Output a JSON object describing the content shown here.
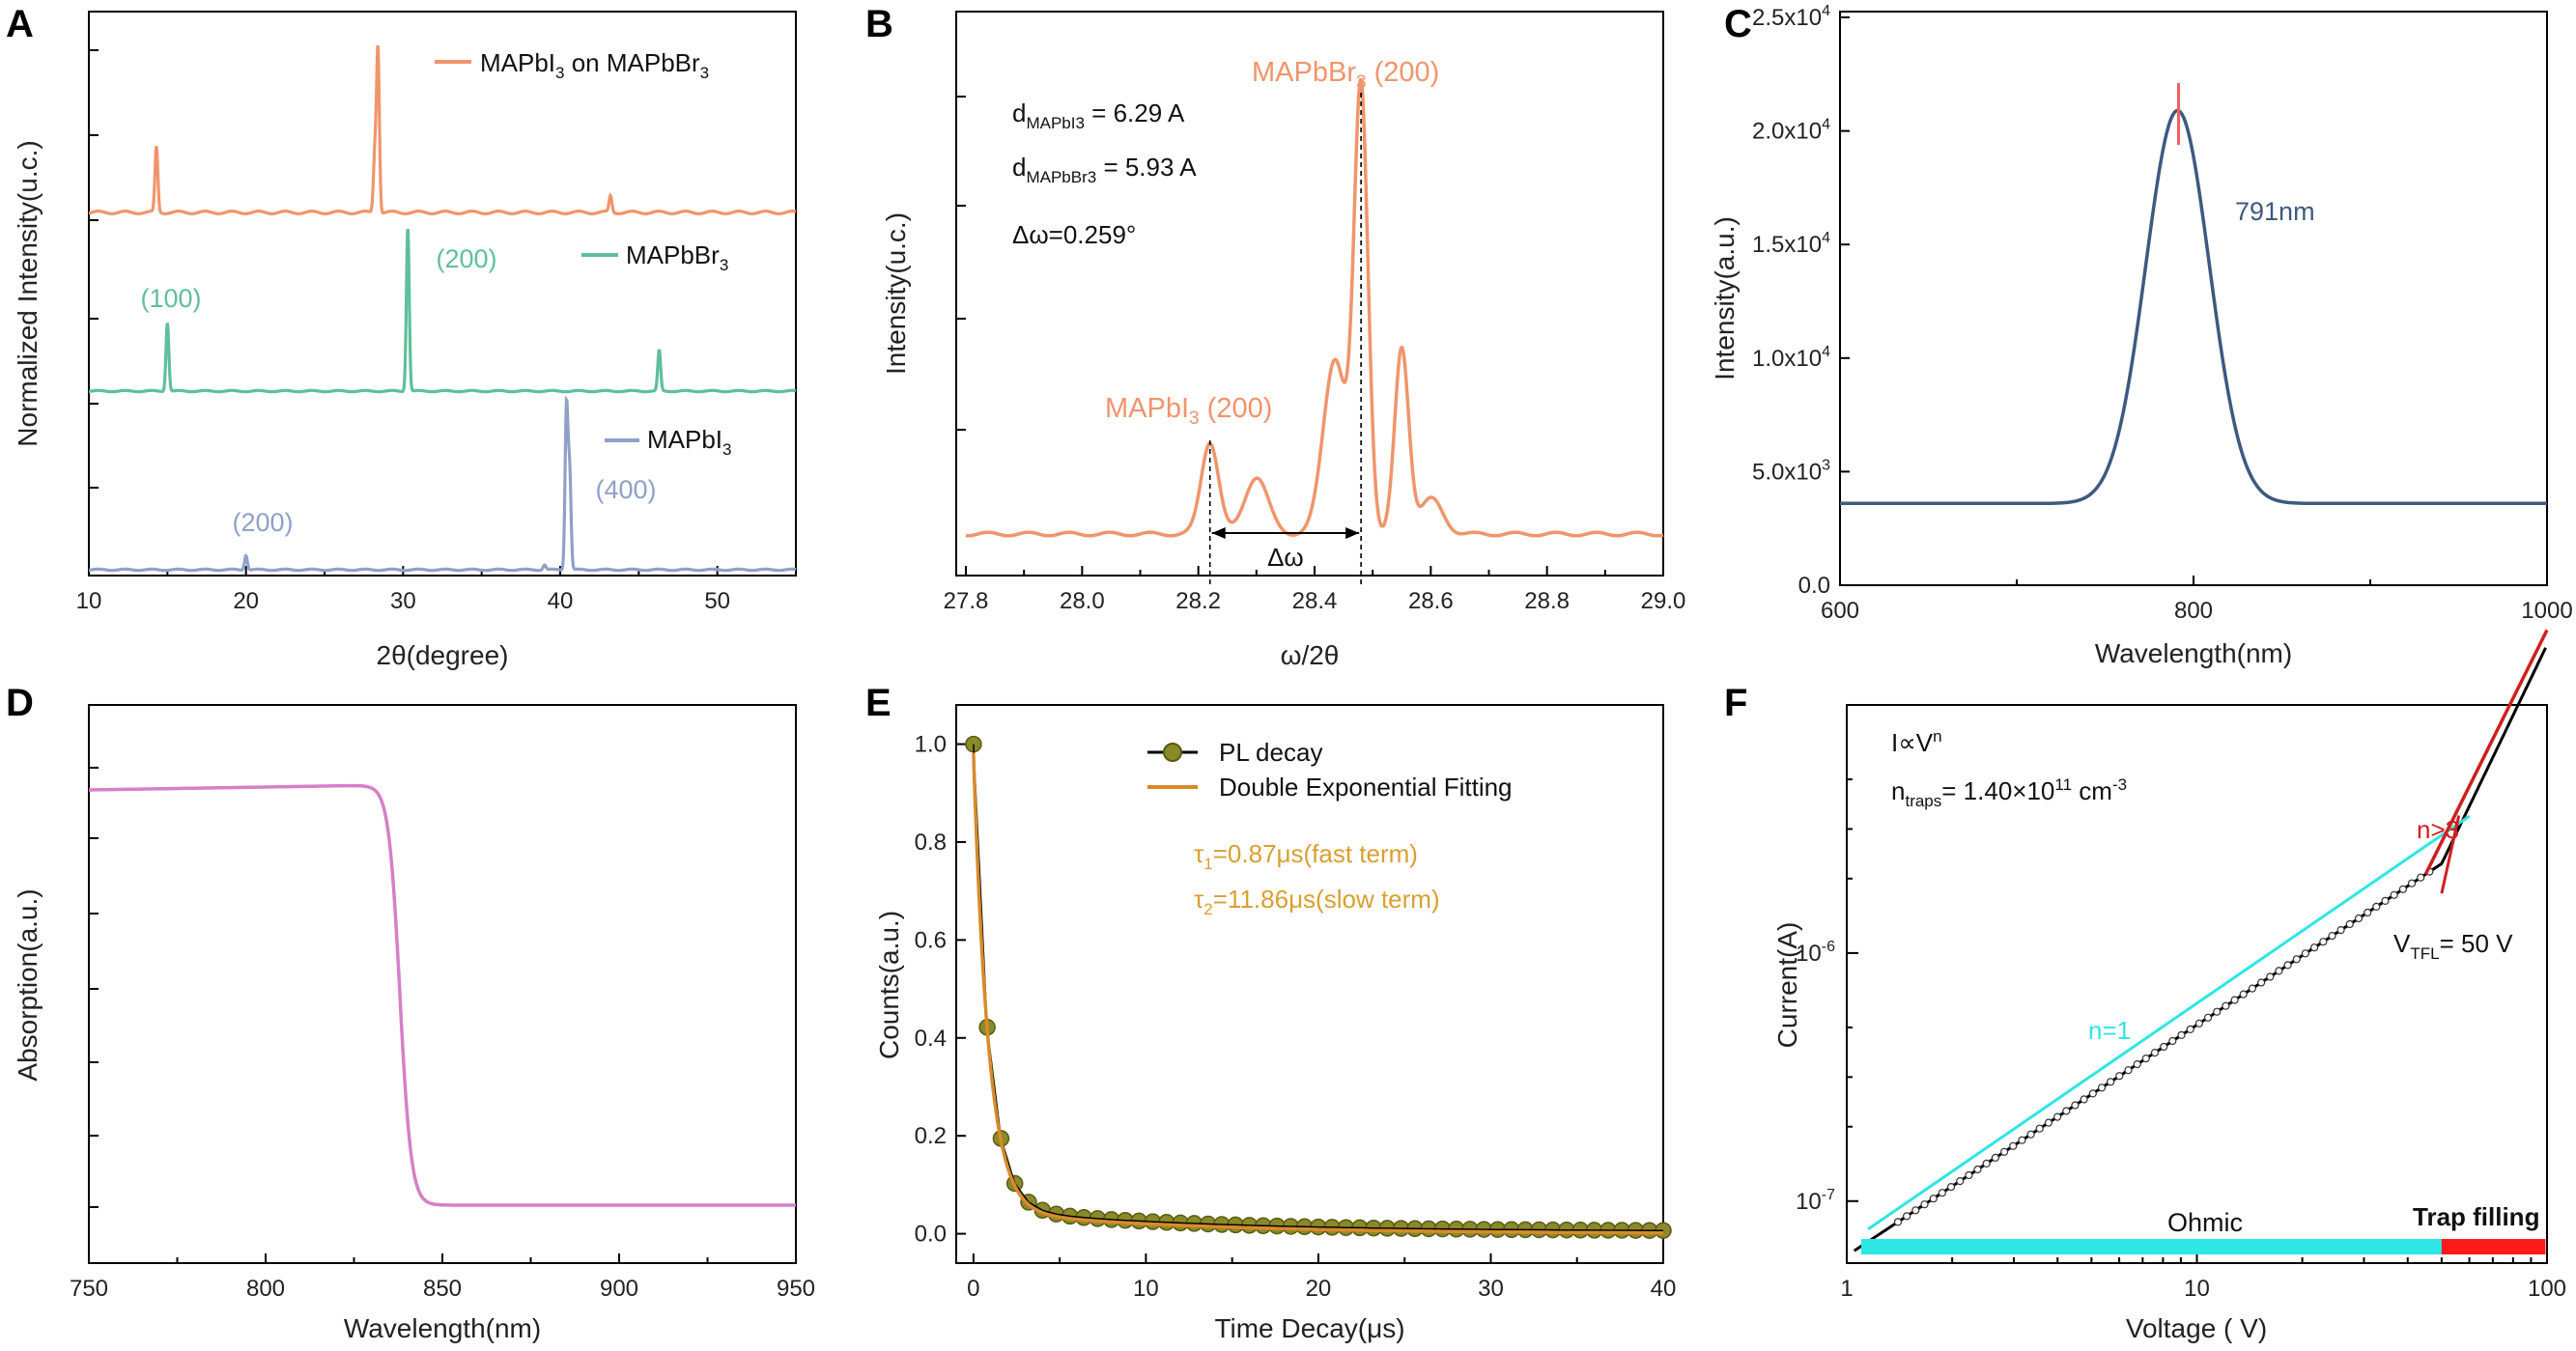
{
  "figure": {
    "panels": [
      "A",
      "B",
      "C",
      "D",
      "E",
      "F"
    ]
  },
  "chart_data": [
    {
      "panel": "A",
      "type": "line",
      "title": "",
      "xlabel": "2θ(degree)",
      "ylabel": "Normalized Intensity(u.c.)",
      "xlim": [
        10,
        55
      ],
      "xticks": [
        "10",
        "20",
        "30",
        "40",
        "50"
      ],
      "series": [
        {
          "name": "MAPbI3 on MAPbBr3",
          "color": "#f0956b",
          "offset": 2.0,
          "baseline": 0.04,
          "peaks": [
            [
              14.3,
              0.4
            ],
            [
              28.4,
              1.0
            ],
            [
              28.2,
              0.35
            ],
            [
              43.2,
              0.1
            ]
          ]
        },
        {
          "name": "MAPbBr3",
          "color": "#5fbf9c",
          "offset": 1.0,
          "baseline": 0.02,
          "peaks": [
            [
              15.0,
              0.42
            ],
            [
              30.3,
              1.0
            ],
            [
              46.3,
              0.25
            ]
          ]
        },
        {
          "name": "MAPbI3",
          "color": "#8fa1c8",
          "offset": 0.0,
          "baseline": 0.02,
          "peaks": [
            [
              20.0,
              0.09
            ],
            [
              39.0,
              0.03
            ],
            [
              40.4,
              1.0
            ],
            [
              40.6,
              0.6
            ]
          ]
        }
      ],
      "legend": [
        {
          "prefix": "MAPbI",
          "sub": "3",
          "suffix": " on MAPbBr",
          "sub2": "3"
        },
        {
          "prefix": "MAPbBr",
          "sub": "3",
          "suffix": "",
          "sub2": ""
        },
        {
          "prefix": "MAPbI",
          "sub": "3",
          "suffix": "",
          "sub2": ""
        }
      ],
      "annotations": [
        "(100)",
        "(200)",
        "(200)",
        "(400)"
      ]
    },
    {
      "panel": "B",
      "type": "line",
      "xlabel": "ω/2θ",
      "ylabel": "Intensity(u.c.)",
      "xlim": [
        27.8,
        29.0
      ],
      "xticks": [
        "27.8",
        "28.0",
        "28.2",
        "28.4",
        "28.6",
        "28.8",
        "29.0"
      ],
      "color": "#f0956b",
      "peaks": [
        [
          28.22,
          0.21,
          0.015
        ],
        [
          28.3,
          0.13,
          0.02
        ],
        [
          28.48,
          1.0,
          0.012
        ],
        [
          28.435,
          0.4,
          0.02
        ],
        [
          28.55,
          0.42,
          0.012
        ],
        [
          28.6,
          0.08,
          0.02
        ]
      ],
      "baseline": 0.0,
      "dashes": [
        28.22,
        28.48
      ],
      "text": {
        "d1_prefix": "d",
        "d1_sub": "MAPbI3",
        "d1_val": " = 6.29 A",
        "d2_prefix": "d",
        "d2_sub": "MAPbBr3",
        "d2_val": " = 5.93 A",
        "domega": "Δω=0.259°",
        "arrow_label": "Δω",
        "peak1_a": "MAPbI",
        "peak1_sub": "3",
        "peak1_b": " (200)",
        "peak2_a": "MAPbBr",
        "peak2_sub": "3",
        "peak2_b": " (200)"
      }
    },
    {
      "panel": "C",
      "type": "line",
      "xlabel": "Wavelength(nm)",
      "ylabel": "Intensity(a.u.)",
      "xlim": [
        600,
        1000
      ],
      "ylim": [
        0,
        25000
      ],
      "xticks": [
        "600",
        "800",
        "1000"
      ],
      "yticks": [
        {
          "v": 0,
          "m": "0.0",
          "e": ""
        },
        {
          "v": 5000,
          "m": "5.0x10",
          "e": "3"
        },
        {
          "v": 10000,
          "m": "1.0x10",
          "e": "4"
        },
        {
          "v": 15000,
          "m": "1.5x10",
          "e": "4"
        },
        {
          "v": 20000,
          "m": "2.0x10",
          "e": "4"
        },
        {
          "v": 25000,
          "m": "2.5x10",
          "e": "4"
        }
      ],
      "color": "#3d5a80",
      "baseline": 3600,
      "peak": {
        "x": 791,
        "amp": 17300,
        "sigma": 18
      },
      "peak_label": "791nm"
    },
    {
      "panel": "D",
      "type": "line",
      "xlabel": "Wavelength(nm)",
      "ylabel": "Absorption(a.u.)",
      "xlim": [
        750,
        950
      ],
      "xticks": [
        "750",
        "800",
        "850",
        "900",
        "950"
      ],
      "color": "#d580c8",
      "high": 0.95,
      "low": 0.03,
      "edge": 838
    },
    {
      "panel": "E",
      "type": "scatter",
      "xlabel": "Time Decay(μs)",
      "ylabel": "Counts(a.u.)",
      "xlim": [
        -1,
        40
      ],
      "ylim": [
        -0.06,
        1.08
      ],
      "xticks": [
        "0",
        "10",
        "20",
        "30",
        "40"
      ],
      "yticks": [
        "0.0",
        "0.2",
        "0.4",
        "0.6",
        "0.8",
        "1.0"
      ],
      "fit": {
        "a1": 0.935,
        "t1": 0.87,
        "a2": 0.047,
        "t2": 11.86,
        "c": -0.01
      },
      "point_step": 0.8,
      "legend": [
        "PL decay",
        "Double Exponential Fitting"
      ],
      "tau1": {
        "a": "τ",
        "sub": "1",
        "b": "=0.87μs(fast term)"
      },
      "tau2": {
        "a": "τ",
        "sub": "2",
        "b": "=11.86μs(slow term)"
      }
    },
    {
      "panel": "F",
      "type": "line",
      "scale": "log-log",
      "xlabel": "Voltage ( V)",
      "ylabel": "Current(A)",
      "xlim": [
        1,
        100
      ],
      "ylim_log10": [
        -7.25,
        -5.0
      ],
      "xticks": [
        {
          "v": 1,
          "l": "1"
        },
        {
          "v": 10,
          "l": "10"
        },
        {
          "v": 100,
          "l": "100"
        }
      ],
      "yticks": [
        {
          "v": -7,
          "m": "10",
          "e": "-7"
        },
        {
          "v": -6,
          "m": "10",
          "e": "-6"
        }
      ],
      "ohmic_end": 50,
      "text": {
        "law_a": "I∝V",
        "law_e": "n",
        "ntr_a": "n",
        "ntr_sub": "traps",
        "ntr_b": "= 1.40×10",
        "ntr_e": "11",
        "ntr_c": " cm",
        "ntr_e2": "-3",
        "n1": "n=1",
        "n3": "n>3",
        "vtfl_a": "V",
        "vtfl_sub": "TFL",
        "vtfl_b": "= 50 V",
        "ohmic": "Ohmic",
        "trap": "Trap filling"
      },
      "colors": {
        "ohmic": "#2ee6e6",
        "trap": "#ff1a1a",
        "fit_n1": "#2ee6e6",
        "fit_n3": "#d01f1f"
      }
    }
  ]
}
